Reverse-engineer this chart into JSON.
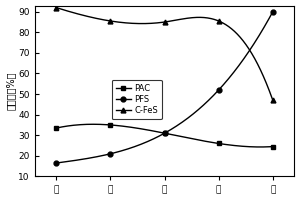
{
  "x": [
    1,
    2,
    3,
    4,
    5
  ],
  "x_labels": [
    "一",
    "二",
    "三",
    "四",
    "五"
  ],
  "PAC": [
    33.5,
    35.0,
    31.0,
    26.0,
    24.5
  ],
  "PFS": [
    16.5,
    21.0,
    31.0,
    52.0,
    90.0
  ],
  "CFeS": [
    92.0,
    85.5,
    85.0,
    85.5,
    47.0
  ],
  "ylim": [
    10,
    93
  ],
  "yticks": [
    10,
    20,
    30,
    40,
    50,
    60,
    70,
    80,
    90
  ],
  "ylabel": "去除率（%）",
  "legend_PAC": "PAC",
  "legend_PFS": "PFS",
  "legend_CFeS": "C-FeS",
  "line_color": "#000000",
  "bg_color": "#ffffff",
  "marker_PAC": "s",
  "marker_PFS": "o",
  "marker_CFeS": "^",
  "xlim": [
    0.6,
    5.4
  ]
}
